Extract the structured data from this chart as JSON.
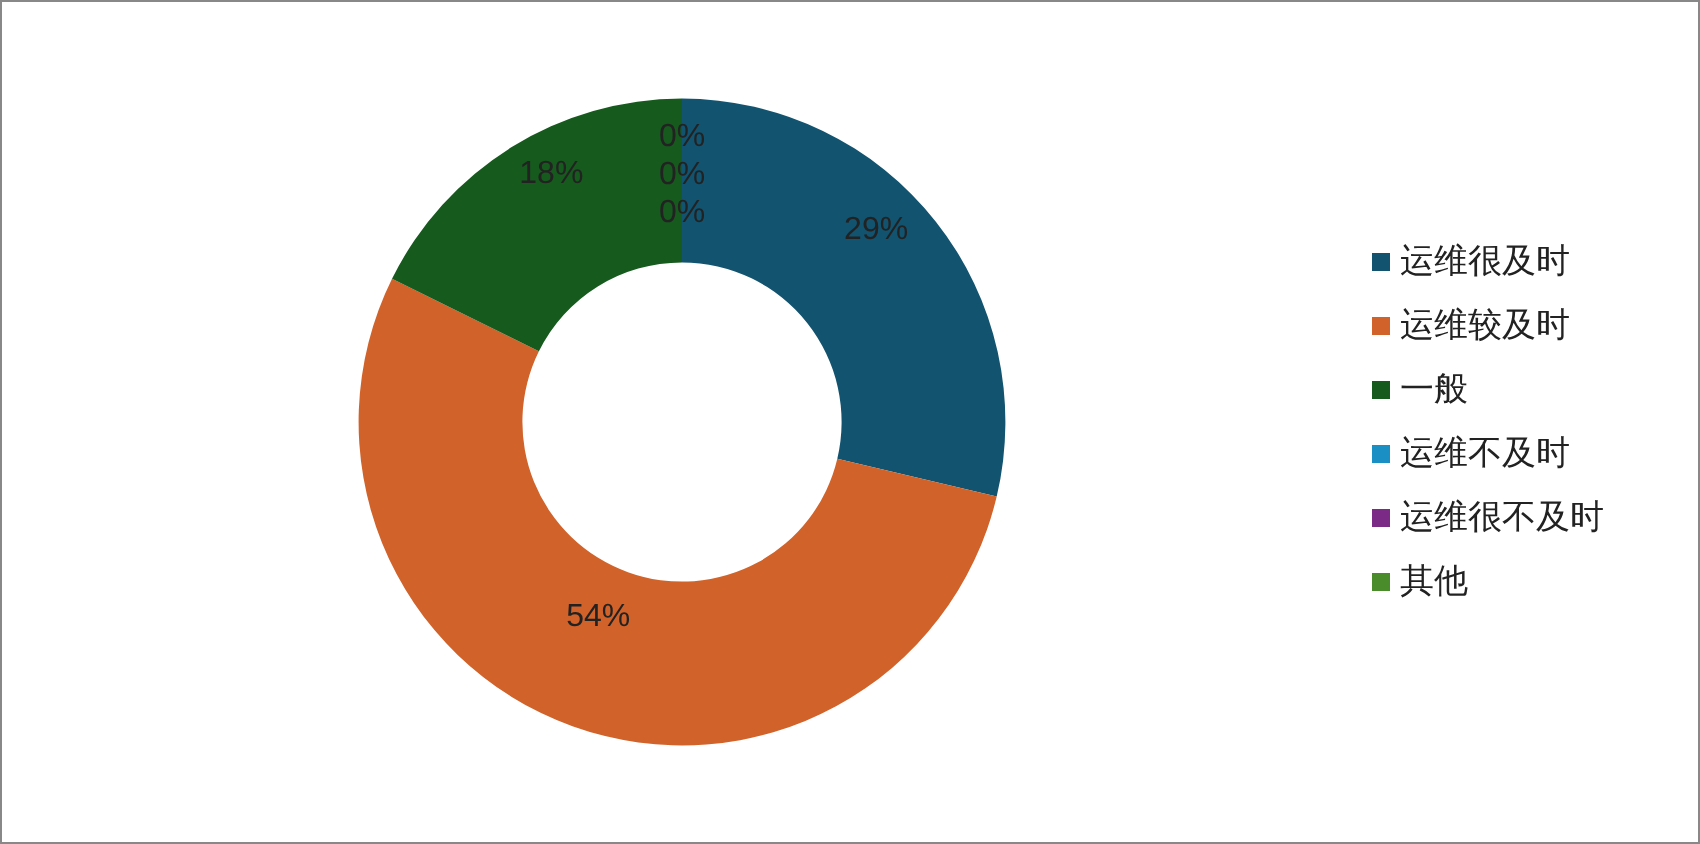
{
  "chart_data": {
    "type": "donut",
    "categories": [
      "运维很及时",
      "运维较及时",
      "一般",
      "运维不及时",
      "运维很不及时",
      "其他"
    ],
    "values": [
      28.7,
      53.6,
      17.7,
      0,
      0,
      0
    ],
    "value_labels": [
      "29%",
      "54%",
      "18%",
      "0%",
      "0%",
      "0%"
    ],
    "colors": [
      "#12536f",
      "#d0622a",
      "#165a1e",
      "#1a8fc4",
      "#7b2b86",
      "#4a8c2c"
    ],
    "legend": "right"
  }
}
